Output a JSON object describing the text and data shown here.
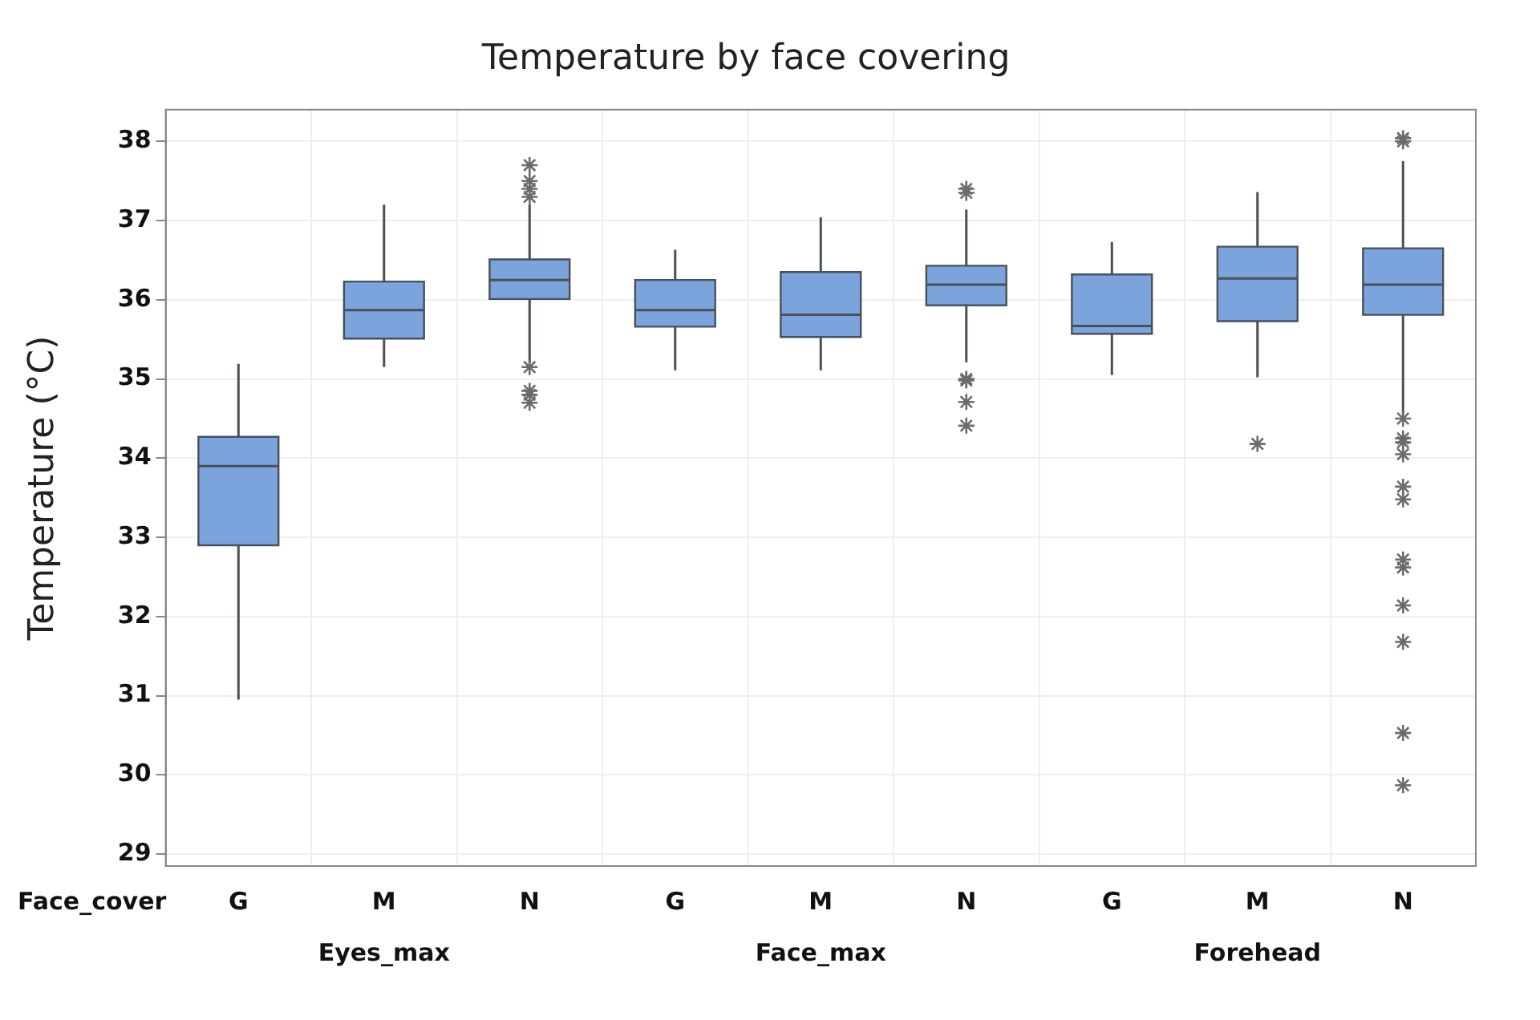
{
  "chart_data": {
    "type": "box",
    "title": "Temperature by face covering",
    "ylabel": "Temperature (°C)",
    "xlabel": "Face_cover",
    "categories": [
      "G",
      "M",
      "N",
      "G",
      "M",
      "N",
      "G",
      "M",
      "N"
    ],
    "annotations": [
      "Eyes_max",
      "Face_max",
      "Forehead"
    ],
    "color": "#7ba4dc",
    "boxes": [
      {
        "low": 30.95,
        "q1": 32.9,
        "median": 33.9,
        "q3": 34.27,
        "high": 35.19
      },
      {
        "low": 35.15,
        "q1": 35.51,
        "median": 35.87,
        "q3": 36.23,
        "high": 37.2
      },
      {
        "low": 35.2,
        "q1": 36.01,
        "median": 36.25,
        "q3": 36.51,
        "high": 37.2,
        "outliers": [
          37.7,
          37.5,
          37.4,
          37.3,
          35.15,
          34.85,
          34.8,
          34.7
        ]
      },
      {
        "low": 35.11,
        "q1": 35.66,
        "median": 35.87,
        "q3": 36.25,
        "high": 36.63
      },
      {
        "low": 35.11,
        "q1": 35.53,
        "median": 35.81,
        "q3": 36.35,
        "high": 37.04
      },
      {
        "low": 35.21,
        "q1": 35.93,
        "median": 36.19,
        "q3": 36.43,
        "high": 37.14,
        "outliers": [
          37.4,
          37.35,
          35.0,
          34.98,
          34.71,
          34.41
        ]
      },
      {
        "low": 35.05,
        "q1": 35.57,
        "median": 35.67,
        "q3": 36.32,
        "high": 36.73
      },
      {
        "low": 35.02,
        "q1": 35.73,
        "median": 36.27,
        "q3": 36.67,
        "high": 37.36,
        "outliers": [
          34.18
        ]
      },
      {
        "low": 34.55,
        "q1": 35.81,
        "median": 36.19,
        "q3": 36.65,
        "high": 37.75,
        "outliers": [
          38.04,
          38.0,
          34.5,
          34.25,
          34.2,
          34.05,
          33.64,
          33.48,
          32.72,
          32.62,
          32.14,
          31.68,
          30.53,
          29.87
        ]
      }
    ],
    "ylim": [
      28.85,
      38.4
    ],
    "yticks": [
      29,
      30,
      31,
      32,
      33,
      34,
      35,
      36,
      37,
      38
    ],
    "grid": true,
    "marker": "star"
  }
}
